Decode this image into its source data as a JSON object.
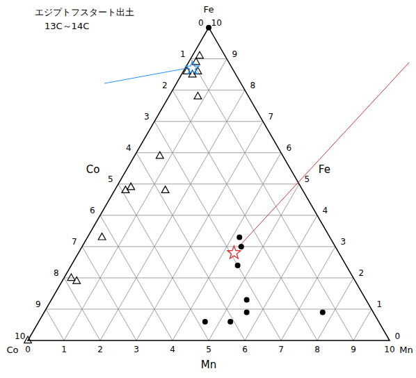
{
  "chart_data": {
    "type": "ternary",
    "grid": true,
    "axes": {
      "left": {
        "label": "Co",
        "lim": [
          0,
          10
        ],
        "ticks": [
          0,
          1,
          2,
          3,
          4,
          5,
          6,
          7,
          8,
          9,
          10
        ]
      },
      "right": {
        "label": "Fe",
        "lim": [
          0,
          10
        ],
        "ticks": [
          0,
          1,
          2,
          3,
          4,
          5,
          6,
          7,
          8,
          9,
          10
        ]
      },
      "bottom": {
        "label": "Mn",
        "lim": [
          0,
          10
        ],
        "ticks": [
          0,
          1,
          2,
          3,
          4,
          5,
          6,
          7,
          8,
          9,
          10
        ]
      }
    },
    "vertices": {
      "top": "Fe",
      "left": "Co",
      "right": "Mn"
    },
    "series": [
      {
        "marker": "triangle",
        "color": "#000000",
        "values": [
          {
            "Fe": 9.1,
            "Co": 0.7,
            "Mn": 0.2
          },
          {
            "Fe": 8.9,
            "Co": 0.9,
            "Mn": 0.2
          },
          {
            "Fe": 8.6,
            "Co": 1.0,
            "Mn": 0.4
          },
          {
            "Fe": 8.5,
            "Co": 1.2,
            "Mn": 0.3
          },
          {
            "Fe": 8.6,
            "Co": 1.3,
            "Mn": 0.1
          },
          {
            "Fe": 7.8,
            "Co": 1.4,
            "Mn": 0.8
          },
          {
            "Fe": 5.9,
            "Co": 3.4,
            "Mn": 0.7
          },
          {
            "Fe": 4.9,
            "Co": 4.7,
            "Mn": 0.4
          },
          {
            "Fe": 4.8,
            "Co": 4.9,
            "Mn": 0.3
          },
          {
            "Fe": 4.8,
            "Co": 3.8,
            "Mn": 1.4
          },
          {
            "Fe": 3.3,
            "Co": 6.3,
            "Mn": 0.4
          },
          {
            "Fe": 2.0,
            "Co": 7.8,
            "Mn": 0.2
          },
          {
            "Fe": 1.9,
            "Co": 7.7,
            "Mn": 0.4
          },
          {
            "Fe": 0,
            "Co": 10,
            "Mn": 0
          }
        ]
      },
      {
        "marker": "circle",
        "color": "#000000",
        "values": [
          {
            "Fe": 10,
            "Co": 0,
            "Mn": 0
          },
          {
            "Fe": 3.3,
            "Co": 2.5,
            "Mn": 4.2
          },
          {
            "Fe": 3.0,
            "Co": 2.6,
            "Mn": 4.4
          },
          {
            "Fe": 2.4,
            "Co": 3.0,
            "Mn": 4.6
          },
          {
            "Fe": 1.3,
            "Co": 3.3,
            "Mn": 5.4
          },
          {
            "Fe": 0.9,
            "Co": 3.5,
            "Mn": 5.6
          },
          {
            "Fe": 0.6,
            "Co": 4.1,
            "Mn": 5.3
          },
          {
            "Fe": 0.6,
            "Co": 4.8,
            "Mn": 4.6
          },
          {
            "Fe": 0.9,
            "Co": 1.4,
            "Mn": 7.7
          }
        ]
      },
      {
        "marker": "star",
        "color": "#1e90ff",
        "values": [
          {
            "Fe": 8.7,
            "Co": 1.1,
            "Mn": 0.2
          }
        ]
      },
      {
        "marker": "star",
        "color": "#e03030",
        "values": [
          {
            "Fe": 2.8,
            "Co": 2.9,
            "Mn": 4.3
          }
        ]
      }
    ],
    "annotations": [
      {
        "text": "エジプトフスタート出土"
      },
      {
        "text": "13C～14C"
      }
    ]
  }
}
